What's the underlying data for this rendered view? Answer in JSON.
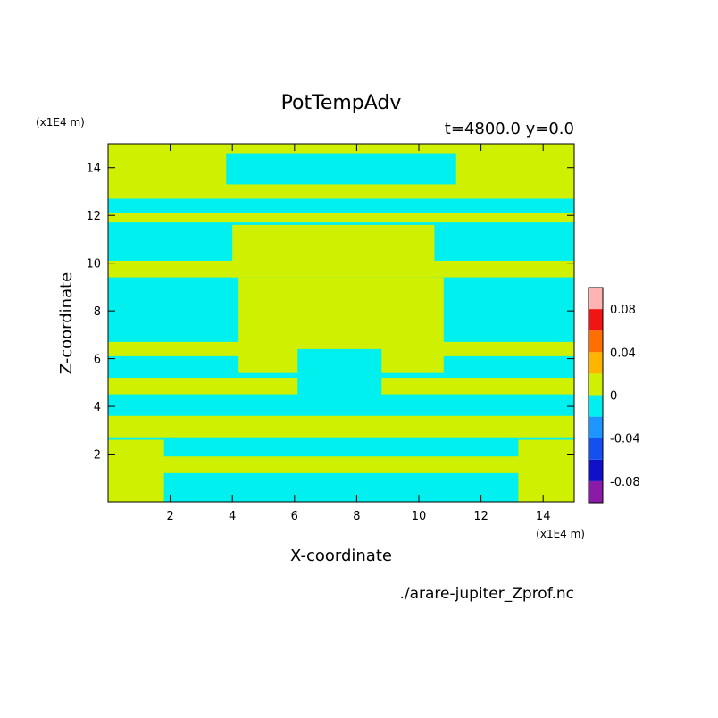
{
  "chart_data": {
    "type": "heatmap",
    "title": "PotTempAdv",
    "subtitle": "t=4800.0 y=0.0",
    "xlabel": "X-coordinate",
    "ylabel": "Z-coordinate",
    "x_unit": "(x1E4 m)",
    "y_unit": "(x1E4 m)",
    "source_file": "./arare-jupiter_Zprof.nc",
    "xlim": [
      0,
      15
    ],
    "ylim": [
      0,
      15
    ],
    "x_ticks": [
      "2",
      "4",
      "6",
      "8",
      "10",
      "12",
      "14"
    ],
    "y_ticks": [
      "2",
      "4",
      "6",
      "8",
      "10",
      "12",
      "14"
    ],
    "colorbar": {
      "levels": [
        -0.1,
        -0.08,
        -0.06,
        -0.04,
        -0.02,
        0,
        0.02,
        0.04,
        0.06,
        0.08,
        0.1
      ],
      "colors": [
        "#8a1aa8",
        "#1010c8",
        "#1450f0",
        "#1e96ff",
        "#00f0f0",
        "#cff000",
        "#ffb400",
        "#ff6e00",
        "#f01414",
        "#ffb4b4"
      ],
      "tick_labels": [
        "0.08",
        "0.04",
        "0",
        "-0.04",
        "-0.08"
      ],
      "tick_values": [
        0.08,
        0.04,
        0,
        -0.04,
        -0.08
      ]
    },
    "colors": {
      "positive_fill": "#cff000",
      "negative_fill": "#00f0f0"
    },
    "bands": [
      {
        "z": [
          14.6,
          15.0
        ],
        "level": 0.01
      },
      {
        "z": [
          13.3,
          14.6
        ],
        "level": -0.01
      },
      {
        "z": [
          12.7,
          13.3
        ],
        "level": 0.01
      },
      {
        "z": [
          12.1,
          12.7
        ],
        "level": -0.01
      },
      {
        "z": [
          11.7,
          12.1
        ],
        "level": 0.01
      },
      {
        "z": [
          10.1,
          11.7
        ],
        "level": -0.01
      },
      {
        "z": [
          9.4,
          10.1
        ],
        "level": 0.01
      },
      {
        "z": [
          8.3,
          9.4
        ],
        "level": -0.01
      },
      {
        "z": [
          6.7,
          8.3
        ],
        "level": -0.01
      },
      {
        "z": [
          6.1,
          6.7
        ],
        "level": 0.01
      },
      {
        "z": [
          5.2,
          6.1
        ],
        "level": -0.01
      },
      {
        "z": [
          4.5,
          5.2
        ],
        "level": 0.01
      },
      {
        "z": [
          3.6,
          4.5
        ],
        "level": -0.01
      },
      {
        "z": [
          2.7,
          3.6
        ],
        "level": 0.01
      },
      {
        "z": [
          1.9,
          2.7
        ],
        "level": -0.01
      },
      {
        "z": [
          1.2,
          1.9
        ],
        "level": 0.01
      },
      {
        "z": [
          0.0,
          1.2
        ],
        "level": -0.01
      }
    ],
    "patches": [
      {
        "x": [
          4.0,
          10.5
        ],
        "z": [
          9.4,
          11.6
        ],
        "level": 0.01
      },
      {
        "x": [
          4.2,
          10.8
        ],
        "z": [
          5.4,
          9.4
        ],
        "level": 0.01
      },
      {
        "x": [
          6.1,
          8.8
        ],
        "z": [
          4.2,
          6.4
        ],
        "level": -0.01
      },
      {
        "x": [
          0.0,
          1.8
        ],
        "z": [
          0.0,
          2.6
        ],
        "level": 0.01
      },
      {
        "x": [
          13.2,
          15.0
        ],
        "z": [
          0.0,
          2.6
        ],
        "level": 0.01
      },
      {
        "x": [
          0.0,
          3.8
        ],
        "z": [
          13.0,
          15.0
        ],
        "level": 0.01
      },
      {
        "x": [
          11.2,
          15.0
        ],
        "z": [
          13.0,
          15.0
        ],
        "level": 0.01
      }
    ]
  }
}
